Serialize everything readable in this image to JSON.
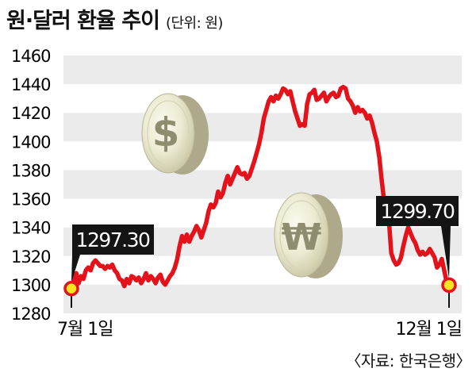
{
  "chart_data": {
    "type": "line",
    "title": "원·달러 환율 추이",
    "unit": "(단위: 원)",
    "source": "〈자료: 한국은행〉",
    "ylim": [
      1280,
      1460
    ],
    "yticks": [
      1460,
      1440,
      1420,
      1400,
      1380,
      1360,
      1340,
      1320,
      1300,
      1280
    ],
    "x_tick_labels": [
      "7월 1일",
      "12월 1일"
    ],
    "grid": true,
    "series": [
      {
        "color": "#e3121b",
        "values": [
          1297.3,
          1302,
          1308,
          1301,
          1306,
          1304,
          1310,
          1312,
          1310,
          1315,
          1317,
          1315,
          1313,
          1313,
          1311,
          1313,
          1312,
          1314,
          1310,
          1308,
          1304,
          1303,
          1299,
          1304,
          1301,
          1306,
          1305,
          1303,
          1305,
          1301,
          1304,
          1308,
          1303,
          1306,
          1304,
          1301,
          1305,
          1307,
          1302,
          1300,
          1303,
          1306,
          1308,
          1312,
          1318,
          1327,
          1334,
          1330,
          1335,
          1330,
          1334,
          1337,
          1341,
          1338,
          1333,
          1338,
          1343,
          1351,
          1356,
          1354,
          1357,
          1365,
          1361,
          1364,
          1371,
          1376,
          1370,
          1374,
          1378,
          1382,
          1378,
          1377,
          1378,
          1374,
          1376,
          1381,
          1386,
          1392,
          1398,
          1406,
          1416,
          1422,
          1428,
          1431,
          1428,
          1432,
          1430,
          1433,
          1437,
          1436,
          1433,
          1435,
          1428,
          1421,
          1416,
          1411,
          1412,
          1411,
          1426,
          1433,
          1434,
          1436,
          1429,
          1430,
          1432,
          1434,
          1428,
          1431,
          1433,
          1434,
          1431,
          1432,
          1437,
          1438,
          1437,
          1430,
          1428,
          1425,
          1420,
          1424,
          1421,
          1422,
          1420,
          1416,
          1418,
          1413,
          1406,
          1400,
          1389,
          1373,
          1359,
          1351,
          1345,
          1322,
          1317,
          1314,
          1315,
          1319,
          1327,
          1334,
          1340,
          1336,
          1332,
          1329,
          1324,
          1321,
          1323,
          1321,
          1322,
          1325,
          1322,
          1319,
          1312,
          1314,
          1318,
          1310,
          1302,
          1299.7
        ]
      }
    ],
    "annotations": [
      {
        "label": "1297.30",
        "value": 1297.3,
        "point": "first"
      },
      {
        "label": "1299.70",
        "value": 1299.7,
        "point": "last"
      }
    ]
  }
}
